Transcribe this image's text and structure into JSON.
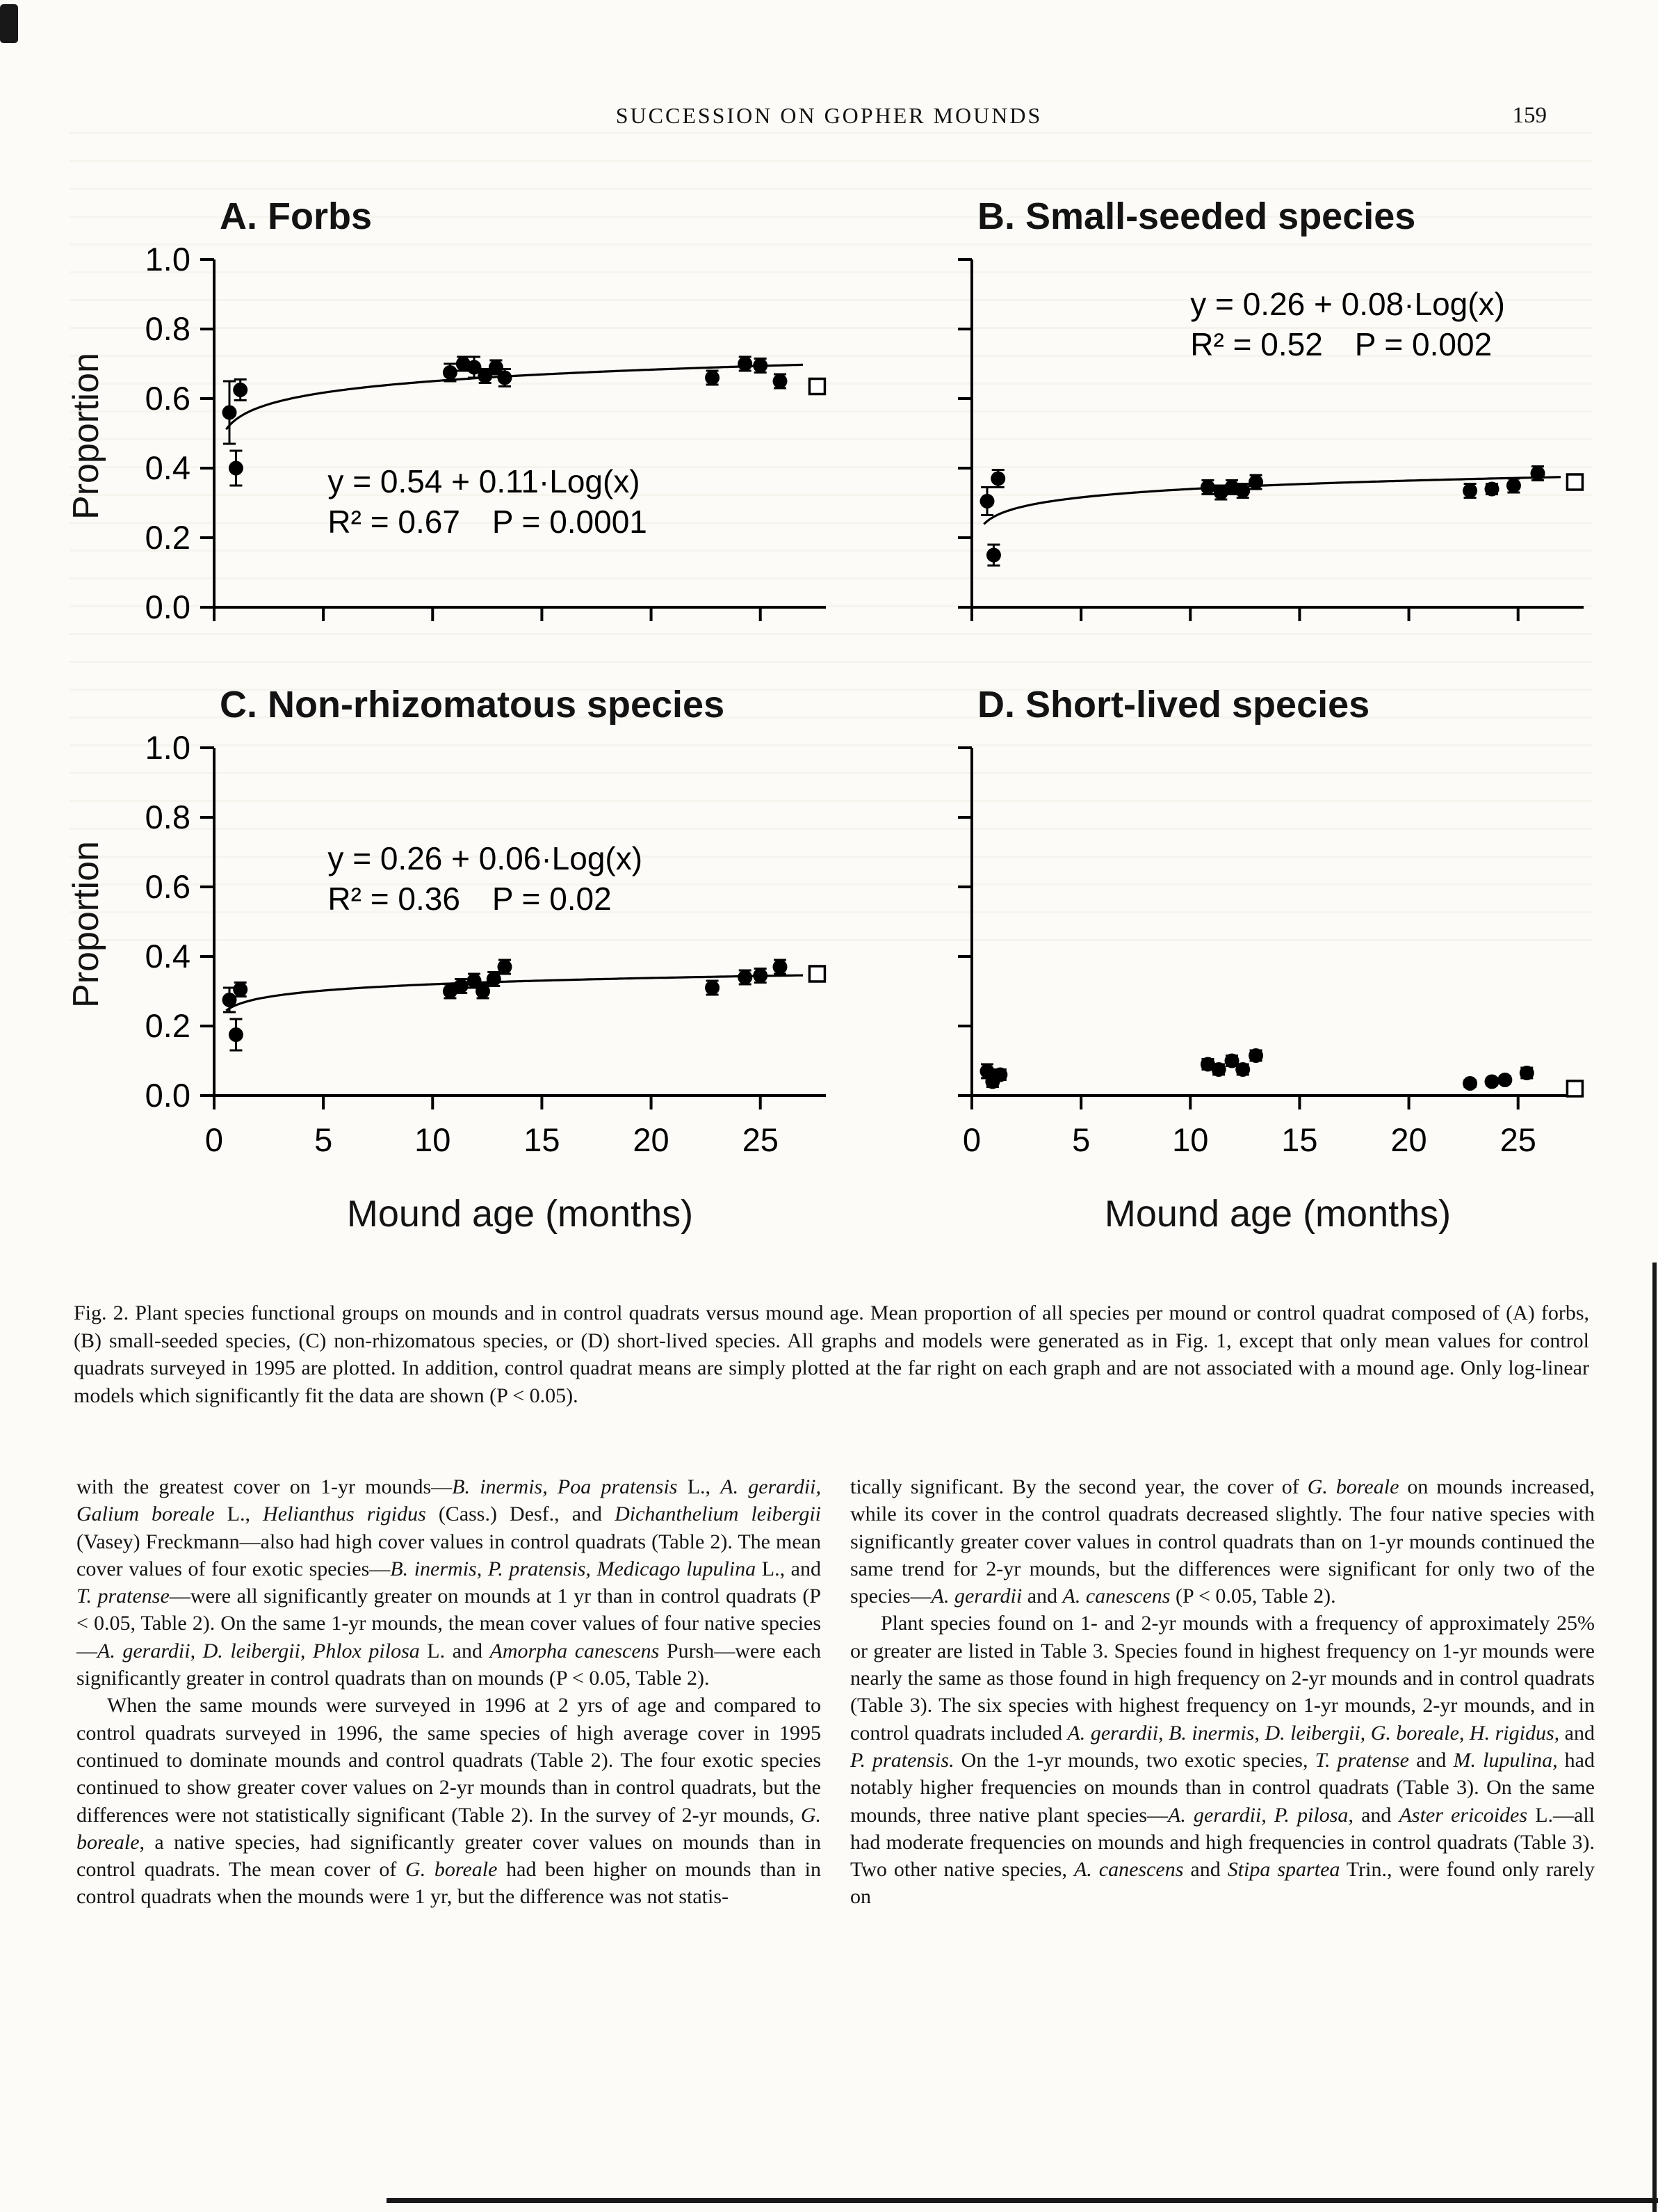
{
  "page": {
    "header": {
      "running_title": "SUCCESSION ON GOPHER MOUNDS",
      "page_number": "159"
    },
    "figure": {
      "y_axis_label": "Proportion",
      "x_axis_label": "Mound age (months)",
      "caption": "Fig. 2.   Plant species functional groups on mounds and in control quadrats versus mound age. Mean proportion of all species per mound or control quadrat composed of (A) forbs, (B) small-seeded species, (C) non-rhizomatous species, or (D) short-lived species. All graphs and models were generated as in Fig. 1, except that only mean values for control quadrats surveyed in 1995 are plotted. In addition, control quadrat means are simply plotted at the far right on each graph and are not associated with a mound age. Only log-linear models which significantly fit the data are shown (P < 0.05)."
    },
    "body": {
      "left_column": [
        "with the greatest cover on 1-yr mounds—<i>B. inermis, Poa pratensis</i> L., <i>A. gerardii, Galium boreale</i> L., <i>Helianthus rigidus</i> (Cass.) Desf., and <i>Dichanthelium leibergii</i> (Vasey) Freckmann—also had high cover values in control quadrats (Table 2). The mean cover values of four exotic species—<i>B. inermis, P. pratensis, Medicago lupulina</i> L., and <i>T. pratense</i>—were all significantly greater on mounds at 1 yr than in control quadrats (P &lt; 0.05, Table 2). On the same 1-yr mounds, the mean cover values of four native species—<i>A. gerardii, D. leibergii, Phlox pilosa</i> L. and <i>Amorpha canescens</i> Pursh—were each significantly greater in control quadrats than on mounds (P &lt; 0.05, Table 2).",
        "When the same mounds were surveyed in 1996 at 2 yrs of age and compared to control quadrats surveyed in 1996, the same species of high average cover in 1995 continued to dominate mounds and control quadrats (Table 2). The four exotic species continued to show greater cover values on 2-yr mounds than in control quadrats, but the differences were not statistically significant (Table 2). In the survey of 2-yr mounds, <i>G. boreale</i>, a native species, had significantly greater cover values on mounds than in control quadrats. The mean cover of <i>G. boreale</i> had been higher on mounds than in control quadrats when the mounds were 1 yr, but the difference was not statis-"
      ],
      "right_column": [
        "tically significant. By the second year, the cover of <i>G. boreale</i> on mounds increased, while its cover in the control quadrats decreased slightly. The four native species with significantly greater cover values in control quadrats than on 1-yr mounds continued the same trend for 2-yr mounds, but the differences were significant for only two of the species—<i>A. gerardii</i> and <i>A. canescens</i> (P &lt; 0.05, Table 2).",
        "Plant species found on 1- and 2-yr mounds with a frequency of approximately 25% or greater are listed in Table 3. Species found in highest frequency on 1-yr mounds were nearly the same as those found in high frequency on 2-yr mounds and in control quadrats (Table 3). The six species with highest frequency on 1-yr mounds, 2-yr mounds, and in control quadrats included <i>A. gerardii, B. inermis, D. leibergii, G. boreale, H. rigidus,</i> and <i>P. pratensis.</i> On the 1-yr mounds, two exotic species, <i>T. pratense</i> and <i>M. lupulina,</i> had notably higher frequencies on mounds than in control quadrats (Table 3). On the same mounds, three native plant species—<i>A. gerardii, P. pilosa,</i> and <i>Aster ericoides</i> L.—all had moderate frequencies on mounds and high frequencies in control quadrats (Table 3). Two other native species, <i>A. canescens</i> and <i>Stipa spartea</i> Trin., were found only rarely on"
      ]
    }
  },
  "chart_data": [
    {
      "id": "A",
      "type": "scatter",
      "title": "A. Forbs",
      "xlabel": "Mound age (months)",
      "ylabel": "Proportion",
      "xlim": [
        0,
        28
      ],
      "ylim": [
        0,
        1.0
      ],
      "xticks": [
        0,
        5,
        10,
        15,
        20,
        25
      ],
      "yticks": [
        0,
        0.2,
        0.4,
        0.6,
        0.8,
        1
      ],
      "show_x_tick_labels": false,
      "show_y_tick_labels": true,
      "equation": "y = 0.54 + 0.11·Log(x)",
      "stats": "R² = 0.67 P = 0.0001",
      "fit": {
        "model": "y = a + b·log10(x)",
        "a": 0.54,
        "b": 0.11,
        "r2": 0.67,
        "p": 0.0001
      },
      "eq_x": 5.2,
      "eq_y": 0.33,
      "points": [
        {
          "x": 0.7,
          "y": 0.56,
          "err": 0.09
        },
        {
          "x": 1.2,
          "y": 0.625,
          "err": 0.03
        },
        {
          "x": 1.0,
          "y": 0.4,
          "err": 0.05
        },
        {
          "x": 10.8,
          "y": 0.675,
          "err": 0.025
        },
        {
          "x": 11.4,
          "y": 0.7,
          "err": 0.02
        },
        {
          "x": 11.9,
          "y": 0.69,
          "err": 0.03
        },
        {
          "x": 12.4,
          "y": 0.665,
          "err": 0.02
        },
        {
          "x": 12.9,
          "y": 0.69,
          "err": 0.02
        },
        {
          "x": 13.3,
          "y": 0.66,
          "err": 0.025
        },
        {
          "x": 22.8,
          "y": 0.66,
          "err": 0.02
        },
        {
          "x": 24.3,
          "y": 0.7,
          "err": 0.02
        },
        {
          "x": 25.0,
          "y": 0.695,
          "err": 0.02
        },
        {
          "x": 25.9,
          "y": 0.65,
          "err": 0.02
        }
      ],
      "control_mean": 0.635
    },
    {
      "id": "B",
      "type": "scatter",
      "title": "B. Small-seeded species",
      "xlabel": "Mound age (months)",
      "ylabel": "Proportion",
      "xlim": [
        0,
        28
      ],
      "ylim": [
        0,
        1.0
      ],
      "xticks": [
        0,
        5,
        10,
        15,
        20,
        25
      ],
      "yticks": [
        0,
        0.2,
        0.4,
        0.6,
        0.8,
        1
      ],
      "show_x_tick_labels": false,
      "show_y_tick_labels": false,
      "equation": "y = 0.26 + 0.08·Log(x)",
      "stats": "R² = 0.52 P = 0.002",
      "fit": {
        "model": "y = a + b·log10(x)",
        "a": 0.26,
        "b": 0.08,
        "r2": 0.52,
        "p": 0.002
      },
      "eq_x": 10.0,
      "eq_y": 0.84,
      "points": [
        {
          "x": 0.7,
          "y": 0.305,
          "err": 0.04
        },
        {
          "x": 1.2,
          "y": 0.37,
          "err": 0.025
        },
        {
          "x": 1.0,
          "y": 0.15,
          "err": 0.03
        },
        {
          "x": 10.8,
          "y": 0.345,
          "err": 0.02
        },
        {
          "x": 11.4,
          "y": 0.33,
          "err": 0.02
        },
        {
          "x": 11.9,
          "y": 0.345,
          "err": 0.02
        },
        {
          "x": 12.4,
          "y": 0.335,
          "err": 0.02
        },
        {
          "x": 13.0,
          "y": 0.36,
          "err": 0.02
        },
        {
          "x": 22.8,
          "y": 0.335,
          "err": 0.02
        },
        {
          "x": 23.8,
          "y": 0.34,
          "err": 0.015
        },
        {
          "x": 24.8,
          "y": 0.35,
          "err": 0.02
        },
        {
          "x": 25.9,
          "y": 0.385,
          "err": 0.02
        }
      ],
      "control_mean": 0.36
    },
    {
      "id": "C",
      "type": "scatter",
      "title": "C. Non-rhizomatous species",
      "xlabel": "Mound age (months)",
      "ylabel": "Proportion",
      "xlim": [
        0,
        28
      ],
      "ylim": [
        0,
        1.0
      ],
      "xticks": [
        0,
        5,
        10,
        15,
        20,
        25
      ],
      "yticks": [
        0,
        0.2,
        0.4,
        0.6,
        0.8,
        1
      ],
      "show_x_tick_labels": true,
      "show_y_tick_labels": true,
      "equation": "y = 0.26 + 0.06·Log(x)",
      "stats": "R² = 0.36 P = 0.02",
      "fit": {
        "model": "y = a + b·log10(x)",
        "a": 0.26,
        "b": 0.06,
        "r2": 0.36,
        "p": 0.02
      },
      "eq_x": 5.2,
      "eq_y": 0.65,
      "points": [
        {
          "x": 0.7,
          "y": 0.275,
          "err": 0.035
        },
        {
          "x": 1.2,
          "y": 0.305,
          "err": 0.02
        },
        {
          "x": 1.0,
          "y": 0.175,
          "err": 0.045
        },
        {
          "x": 10.8,
          "y": 0.3,
          "err": 0.02
        },
        {
          "x": 11.3,
          "y": 0.315,
          "err": 0.02
        },
        {
          "x": 11.9,
          "y": 0.33,
          "err": 0.02
        },
        {
          "x": 12.3,
          "y": 0.3,
          "err": 0.02
        },
        {
          "x": 12.8,
          "y": 0.335,
          "err": 0.02
        },
        {
          "x": 13.3,
          "y": 0.37,
          "err": 0.02
        },
        {
          "x": 22.8,
          "y": 0.31,
          "err": 0.02
        },
        {
          "x": 24.3,
          "y": 0.34,
          "err": 0.02
        },
        {
          "x": 25.0,
          "y": 0.345,
          "err": 0.02
        },
        {
          "x": 25.9,
          "y": 0.37,
          "err": 0.02
        }
      ],
      "control_mean": 0.35
    },
    {
      "id": "D",
      "type": "scatter",
      "title": "D. Short-lived species",
      "xlabel": "Mound age (months)",
      "ylabel": "Proportion",
      "xlim": [
        0,
        28
      ],
      "ylim": [
        0,
        1.0
      ],
      "xticks": [
        0,
        5,
        10,
        15,
        20,
        25
      ],
      "yticks": [
        0,
        0.2,
        0.4,
        0.6,
        0.8,
        1
      ],
      "show_x_tick_labels": true,
      "show_y_tick_labels": false,
      "equation": null,
      "stats": null,
      "fit": null,
      "eq_x": null,
      "eq_y": null,
      "points": [
        {
          "x": 0.7,
          "y": 0.07,
          "err": 0.02
        },
        {
          "x": 0.95,
          "y": 0.04,
          "err": 0.015
        },
        {
          "x": 1.3,
          "y": 0.06,
          "err": 0.015
        },
        {
          "x": 10.8,
          "y": 0.09,
          "err": 0.015
        },
        {
          "x": 11.3,
          "y": 0.075,
          "err": 0.015
        },
        {
          "x": 11.9,
          "y": 0.1,
          "err": 0.015
        },
        {
          "x": 12.4,
          "y": 0.075,
          "err": 0.015
        },
        {
          "x": 13.0,
          "y": 0.115,
          "err": 0.015
        },
        {
          "x": 22.8,
          "y": 0.035,
          "err": 0.01
        },
        {
          "x": 23.8,
          "y": 0.04,
          "err": 0.01
        },
        {
          "x": 24.4,
          "y": 0.045,
          "err": 0.01
        },
        {
          "x": 25.4,
          "y": 0.065,
          "err": 0.015
        }
      ],
      "control_mean": 0.02
    }
  ]
}
